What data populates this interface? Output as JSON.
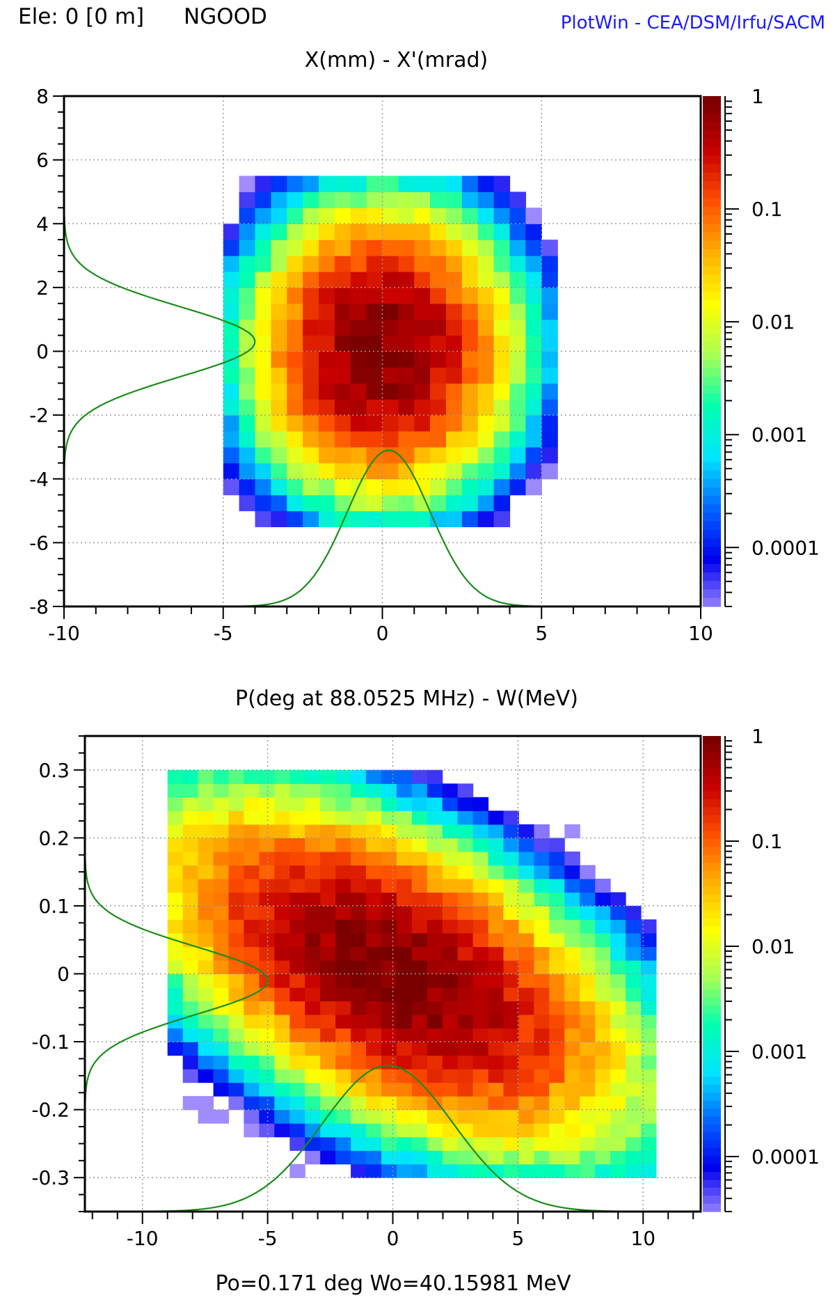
{
  "header": {
    "element": "Ele: 0 [0 m]",
    "ngood": "NGOOD",
    "brand": "PlotWin - CEA/DSM/Irfu/SACM"
  },
  "footer": "Po=0.171 deg  Wo=40.15981 MeV",
  "colors": {
    "profile": "#1a8c1a",
    "frame": "#000000",
    "grid": "#9a9a9a",
    "colormap": [
      "#a08cff",
      "#0000ee",
      "#0066ff",
      "#00e5ff",
      "#00ffb0",
      "#a8ff55",
      "#ffff00",
      "#ffb000",
      "#ff5000",
      "#c80000",
      "#7a0000"
    ]
  },
  "chart_data": [
    {
      "type": "heatmap",
      "title": "X(mm) - X'(mrad)",
      "xlabel": "",
      "ylabel": "",
      "xlim": [
        -10,
        10
      ],
      "ylim": [
        -8,
        8
      ],
      "xticks": [
        "-10",
        "-5",
        "0",
        "5",
        "10"
      ],
      "yticks": [
        "8",
        "6",
        "4",
        "2",
        "0",
        "-2",
        "-4",
        "-6",
        "-8"
      ],
      "colorbar": {
        "scale": "log",
        "range": [
          3e-05,
          1
        ],
        "tick_labels": [
          "1",
          "0.1",
          "0.01",
          "0.001",
          "0.0001"
        ]
      },
      "density": {
        "center": [
          0,
          0
        ],
        "sigma": [
          1.35,
          1.5
        ],
        "rho": 0.0,
        "bin": [
          0.5,
          0.5
        ],
        "extent_x": [
          -5,
          5.5
        ],
        "extent_y": [
          -5.5,
          5.5
        ]
      },
      "profile_x": {
        "center": 0.2,
        "sigma": 1.3,
        "baseline": -8,
        "peak": -3.1
      },
      "profile_y": {
        "center": 0.3,
        "sigma": 1.1,
        "baseline": -10,
        "peak": -4.0
      },
      "grid": true
    },
    {
      "type": "heatmap",
      "title": "P(deg at 88.0525 MHz) - W(MeV)",
      "xlabel": "",
      "ylabel": "",
      "xlim": [
        -12.3,
        12.3
      ],
      "ylim": [
        -0.35,
        0.35
      ],
      "xticks": [
        "-10",
        "-5",
        "0",
        "5",
        "10"
      ],
      "yticks": [
        "0.3",
        "0.2",
        "0.1",
        "0",
        "-0.1",
        "-0.2",
        "-0.3"
      ],
      "colorbar": {
        "scale": "log",
        "range": [
          3e-05,
          1
        ],
        "tick_labels": [
          "1",
          "0.1",
          "0.01",
          "0.001",
          "0.0001"
        ]
      },
      "density": {
        "center": [
          0,
          0
        ],
        "sigma": [
          3.2,
          0.085
        ],
        "rho": -0.55,
        "bin": [
          0.61,
          0.02
        ],
        "extent_x": [
          -9,
          10
        ],
        "extent_y": [
          -0.3,
          0.28
        ]
      },
      "profile_x": {
        "center": -0.2,
        "sigma": 2.6,
        "baseline": -0.35,
        "peak": -0.135
      },
      "profile_y": {
        "center": -0.01,
        "sigma": 0.05,
        "baseline": -12.3,
        "peak": -5.0
      },
      "grid": true
    }
  ]
}
